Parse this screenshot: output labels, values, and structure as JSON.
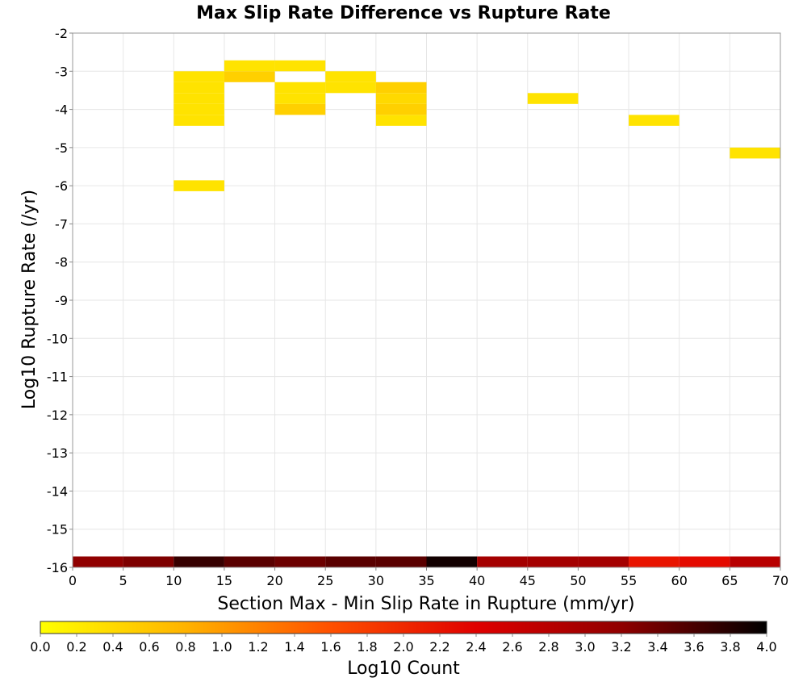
{
  "chart_data": {
    "type": "heatmap",
    "title": "Max Slip Rate Difference vs Rupture Rate",
    "xlabel": "Section Max - Min Slip Rate in Rupture (mm/yr)",
    "ylabel": "Log10 Rupture Rate (/yr)",
    "xlim": [
      0,
      70
    ],
    "ylim": [
      -16,
      -2
    ],
    "x_ticks": [
      "0",
      "5",
      "10",
      "15",
      "20",
      "25",
      "30",
      "35",
      "40",
      "45",
      "50",
      "55",
      "60",
      "65",
      "70"
    ],
    "y_ticks": [
      "-2",
      "-3",
      "-4",
      "-5",
      "-6",
      "-7",
      "-8",
      "-9",
      "-10",
      "-11",
      "-12",
      "-13",
      "-14",
      "-15",
      "-16"
    ],
    "grid": true,
    "x_bin_width": 5,
    "y_bin_height": 0.2857,
    "cells": [
      {
        "x": 0,
        "y": -16.0,
        "value": 3.2
      },
      {
        "x": 5,
        "y": -16.0,
        "value": 3.3
      },
      {
        "x": 10,
        "y": -16.0,
        "value": 3.7
      },
      {
        "x": 15,
        "y": -16.0,
        "value": 3.5
      },
      {
        "x": 20,
        "y": -16.0,
        "value": 3.4
      },
      {
        "x": 25,
        "y": -16.0,
        "value": 3.5
      },
      {
        "x": 30,
        "y": -16.0,
        "value": 3.5
      },
      {
        "x": 35,
        "y": -16.0,
        "value": 3.9
      },
      {
        "x": 40,
        "y": -16.0,
        "value": 3.0
      },
      {
        "x": 45,
        "y": -16.0,
        "value": 3.0
      },
      {
        "x": 50,
        "y": -16.0,
        "value": 3.0
      },
      {
        "x": 55,
        "y": -16.0,
        "value": 2.2
      },
      {
        "x": 60,
        "y": -16.0,
        "value": 2.3
      },
      {
        "x": 65,
        "y": -16.0,
        "value": 2.8
      },
      {
        "x": 10,
        "y": -6.143,
        "value": 0.3
      },
      {
        "x": 10,
        "y": -4.429,
        "value": 0.3
      },
      {
        "x": 10,
        "y": -4.143,
        "value": 0.3
      },
      {
        "x": 10,
        "y": -3.857,
        "value": 0.3
      },
      {
        "x": 10,
        "y": -3.571,
        "value": 0.3
      },
      {
        "x": 10,
        "y": -3.286,
        "value": 0.3
      },
      {
        "x": 15,
        "y": -3.286,
        "value": 0.5
      },
      {
        "x": 15,
        "y": -3.0,
        "value": 0.3
      },
      {
        "x": 20,
        "y": -4.143,
        "value": 0.5
      },
      {
        "x": 20,
        "y": -3.857,
        "value": 0.3
      },
      {
        "x": 20,
        "y": -3.571,
        "value": 0.3
      },
      {
        "x": 20,
        "y": -3.0,
        "value": 0.3
      },
      {
        "x": 25,
        "y": -3.571,
        "value": 0.3
      },
      {
        "x": 25,
        "y": -3.286,
        "value": 0.3
      },
      {
        "x": 30,
        "y": -4.429,
        "value": 0.3
      },
      {
        "x": 30,
        "y": -4.143,
        "value": 0.5
      },
      {
        "x": 30,
        "y": -3.857,
        "value": 0.4
      },
      {
        "x": 30,
        "y": -3.571,
        "value": 0.5
      },
      {
        "x": 45,
        "y": -3.857,
        "value": 0.3
      },
      {
        "x": 55,
        "y": -4.429,
        "value": 0.3
      },
      {
        "x": 65,
        "y": -5.286,
        "value": 0.3
      }
    ],
    "colorbar": {
      "label": "Log10 Count",
      "range": [
        0,
        4
      ],
      "ticks": [
        "0.0",
        "0.2",
        "0.4",
        "0.6",
        "0.8",
        "1.0",
        "1.2",
        "1.4",
        "1.6",
        "1.8",
        "2.0",
        "2.2",
        "2.4",
        "2.6",
        "2.8",
        "3.0",
        "3.2",
        "3.4",
        "3.6",
        "3.8",
        "4.0"
      ],
      "stops": [
        "#ffff00",
        "#ffb300",
        "#ff5000",
        "#e00000",
        "#900000",
        "#000000"
      ]
    }
  }
}
